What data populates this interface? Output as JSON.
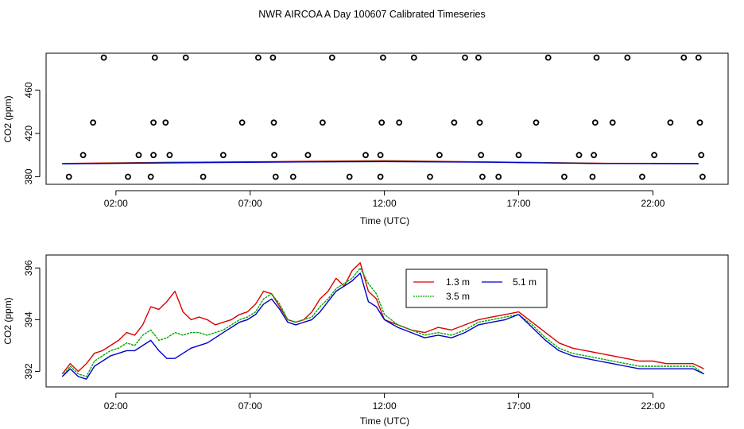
{
  "page_title": "NWR AIRCOA A  Day 100607  Calibrated Timeseries",
  "colors": {
    "h13": "#dd0000",
    "h35": "#00aa00",
    "h51": "#0000cc",
    "top_line": "#0000cc",
    "axes": "#000000"
  },
  "chart_data": [
    {
      "type": "scatter",
      "panel": "top",
      "xlabel": "Time (UTC)",
      "ylabel": "CO2 (ppm)",
      "xlim": [
        -0.6,
        24.8
      ],
      "ylim": [
        373,
        494
      ],
      "xticks": [
        2,
        7,
        12,
        17,
        22
      ],
      "xtick_labels": [
        "02:00",
        "07:00",
        "12:00",
        "17:00",
        "22:00"
      ],
      "yticks": [
        380,
        420,
        460
      ],
      "ytick_labels": [
        "380",
        "420",
        "460"
      ],
      "points": [
        [
          0.25,
          380
        ],
        [
          0.78,
          400
        ],
        [
          1.15,
          430
        ],
        [
          1.55,
          490
        ],
        [
          2.45,
          380
        ],
        [
          2.85,
          400
        ],
        [
          3.3,
          380
        ],
        [
          3.4,
          400
        ],
        [
          3.4,
          430
        ],
        [
          3.45,
          490
        ],
        [
          3.85,
          430
        ],
        [
          4.0,
          400
        ],
        [
          4.6,
          490
        ],
        [
          5.25,
          380
        ],
        [
          6.0,
          400
        ],
        [
          6.7,
          430
        ],
        [
          7.3,
          490
        ],
        [
          7.85,
          490
        ],
        [
          7.88,
          430
        ],
        [
          7.9,
          400
        ],
        [
          7.95,
          380
        ],
        [
          8.6,
          380
        ],
        [
          9.15,
          400
        ],
        [
          9.7,
          430
        ],
        [
          10.05,
          490
        ],
        [
          10.7,
          380
        ],
        [
          11.3,
          400
        ],
        [
          11.85,
          380
        ],
        [
          11.85,
          400
        ],
        [
          11.9,
          430
        ],
        [
          11.95,
          490
        ],
        [
          12.55,
          430
        ],
        [
          13.1,
          490
        ],
        [
          13.7,
          380
        ],
        [
          14.05,
          400
        ],
        [
          14.6,
          430
        ],
        [
          15.0,
          490
        ],
        [
          15.5,
          490
        ],
        [
          15.55,
          430
        ],
        [
          15.6,
          400
        ],
        [
          15.65,
          380
        ],
        [
          16.25,
          380
        ],
        [
          17.0,
          400
        ],
        [
          17.65,
          430
        ],
        [
          18.1,
          490
        ],
        [
          18.7,
          380
        ],
        [
          19.25,
          400
        ],
        [
          19.75,
          380
        ],
        [
          19.8,
          400
        ],
        [
          19.85,
          430
        ],
        [
          19.9,
          490
        ],
        [
          20.5,
          430
        ],
        [
          21.05,
          490
        ],
        [
          21.6,
          380
        ],
        [
          22.05,
          400
        ],
        [
          22.65,
          430
        ],
        [
          23.15,
          490
        ],
        [
          23.7,
          490
        ],
        [
          23.75,
          430
        ],
        [
          23.8,
          400
        ],
        [
          23.85,
          380
        ]
      ],
      "series": [
        {
          "name": "1.3 m",
          "x": [
            0,
            4,
            8,
            12,
            16,
            20,
            23.7
          ],
          "values": [
            392.2,
            393.3,
            394.0,
            394.8,
            393.6,
            392.4,
            392.3
          ]
        },
        {
          "name": "3.5 m",
          "x": [
            0,
            4,
            8,
            12,
            16,
            20,
            23.7
          ],
          "values": [
            392.0,
            393.0,
            393.7,
            394.3,
            393.5,
            392.3,
            392.1
          ]
        },
        {
          "name": "5.1 m",
          "x": [
            0,
            4,
            8,
            12,
            16,
            20,
            23.7
          ],
          "values": [
            391.9,
            392.8,
            393.5,
            394.0,
            393.4,
            392.2,
            392.0
          ]
        }
      ]
    },
    {
      "type": "line",
      "panel": "bottom",
      "xlabel": "Time (UTC)",
      "ylabel": "CO2 (ppm)",
      "xlim": [
        -0.6,
        24.8
      ],
      "ylim": [
        391.4,
        396.5
      ],
      "xticks": [
        2,
        7,
        12,
        17,
        22
      ],
      "xtick_labels": [
        "02:00",
        "07:00",
        "12:00",
        "17:00",
        "22:00"
      ],
      "yticks": [
        392,
        394,
        396
      ],
      "ytick_labels": [
        "392",
        "394",
        "396"
      ],
      "legend_position": "top-center",
      "series": [
        {
          "name": "1.3 m",
          "x": [
            0,
            0.3,
            0.6,
            0.9,
            1.2,
            1.5,
            1.8,
            2.1,
            2.4,
            2.7,
            3.0,
            3.3,
            3.6,
            3.9,
            4.2,
            4.5,
            4.8,
            5.1,
            5.4,
            5.7,
            6.0,
            6.3,
            6.6,
            6.9,
            7.2,
            7.5,
            7.8,
            8.1,
            8.4,
            8.7,
            9.0,
            9.3,
            9.6,
            9.9,
            10.2,
            10.5,
            10.8,
            11.1,
            11.4,
            11.7,
            12.0,
            12.5,
            13.0,
            13.5,
            14.0,
            14.5,
            15.0,
            15.5,
            16.0,
            16.5,
            17.0,
            17.5,
            18.0,
            18.5,
            19.0,
            19.5,
            20.0,
            20.5,
            21.0,
            21.5,
            22.0,
            22.5,
            23.0,
            23.5,
            23.9
          ],
          "values": [
            391.9,
            392.3,
            392.0,
            392.3,
            392.7,
            392.8,
            393.0,
            393.2,
            393.5,
            393.4,
            393.8,
            394.5,
            394.4,
            394.7,
            395.1,
            394.3,
            394.0,
            394.1,
            394.0,
            393.8,
            393.9,
            394.0,
            394.2,
            394.3,
            394.6,
            395.1,
            395.0,
            394.5,
            394.0,
            393.9,
            394.0,
            394.3,
            394.8,
            395.1,
            395.6,
            395.3,
            395.9,
            396.2,
            395.1,
            394.8,
            394.0,
            393.8,
            393.6,
            393.5,
            393.7,
            393.6,
            393.8,
            394.0,
            394.1,
            394.2,
            394.3,
            393.9,
            393.5,
            393.1,
            392.9,
            392.8,
            392.7,
            392.6,
            392.5,
            392.4,
            392.4,
            392.3,
            392.3,
            392.3,
            392.1
          ]
        },
        {
          "name": "3.5 m",
          "x": [
            0,
            0.3,
            0.6,
            0.9,
            1.2,
            1.5,
            1.8,
            2.1,
            2.4,
            2.7,
            3.0,
            3.3,
            3.6,
            3.9,
            4.2,
            4.5,
            4.8,
            5.1,
            5.4,
            5.7,
            6.0,
            6.3,
            6.6,
            6.9,
            7.2,
            7.5,
            7.8,
            8.1,
            8.4,
            8.7,
            9.0,
            9.3,
            9.6,
            9.9,
            10.2,
            10.5,
            10.8,
            11.1,
            11.4,
            11.7,
            12.0,
            12.5,
            13.0,
            13.5,
            14.0,
            14.5,
            15.0,
            15.5,
            16.0,
            16.5,
            17.0,
            17.5,
            18.0,
            18.5,
            19.0,
            19.5,
            20.0,
            20.5,
            21.0,
            21.5,
            22.0,
            22.5,
            23.0,
            23.5,
            23.9
          ],
          "values": [
            391.8,
            392.2,
            391.9,
            391.8,
            392.4,
            392.6,
            392.8,
            392.9,
            393.1,
            393.0,
            393.4,
            393.6,
            393.2,
            393.3,
            393.5,
            393.4,
            393.5,
            393.5,
            393.4,
            393.5,
            393.6,
            393.8,
            394.0,
            394.1,
            394.3,
            394.8,
            395.0,
            394.6,
            394.0,
            393.9,
            394.0,
            394.1,
            394.5,
            394.8,
            395.2,
            395.4,
            395.6,
            396.0,
            395.4,
            395.0,
            394.2,
            393.8,
            393.6,
            393.4,
            393.5,
            393.4,
            393.6,
            393.9,
            394.0,
            394.1,
            394.2,
            393.8,
            393.3,
            392.9,
            392.7,
            392.6,
            392.5,
            392.4,
            392.3,
            392.2,
            392.2,
            392.2,
            392.2,
            392.2,
            391.9
          ]
        },
        {
          "name": "5.1 m",
          "x": [
            0,
            0.3,
            0.6,
            0.9,
            1.2,
            1.5,
            1.8,
            2.1,
            2.4,
            2.7,
            3.0,
            3.3,
            3.6,
            3.9,
            4.2,
            4.5,
            4.8,
            5.1,
            5.4,
            5.7,
            6.0,
            6.3,
            6.6,
            6.9,
            7.2,
            7.5,
            7.8,
            8.1,
            8.4,
            8.7,
            9.0,
            9.3,
            9.6,
            9.9,
            10.2,
            10.5,
            10.8,
            11.1,
            11.4,
            11.7,
            12.0,
            12.5,
            13.0,
            13.5,
            14.0,
            14.5,
            15.0,
            15.5,
            16.0,
            16.5,
            17.0,
            17.5,
            18.0,
            18.5,
            19.0,
            19.5,
            20.0,
            20.5,
            21.0,
            21.5,
            22.0,
            22.5,
            23.0,
            23.5,
            23.9
          ],
          "values": [
            391.8,
            392.1,
            391.8,
            391.7,
            392.2,
            392.4,
            392.6,
            392.7,
            392.8,
            392.8,
            393.0,
            393.2,
            392.8,
            392.5,
            392.5,
            392.7,
            392.9,
            393.0,
            393.1,
            393.3,
            393.5,
            393.7,
            393.9,
            394.0,
            394.2,
            394.6,
            394.8,
            394.4,
            393.9,
            393.8,
            393.9,
            394.0,
            394.3,
            394.7,
            395.1,
            395.3,
            395.5,
            395.8,
            394.7,
            394.5,
            394.0,
            393.7,
            393.5,
            393.3,
            393.4,
            393.3,
            393.5,
            393.8,
            393.9,
            394.0,
            394.2,
            393.7,
            393.2,
            392.8,
            392.6,
            392.5,
            392.4,
            392.3,
            392.2,
            392.1,
            392.1,
            392.1,
            392.1,
            392.1,
            391.9
          ]
        }
      ]
    }
  ]
}
